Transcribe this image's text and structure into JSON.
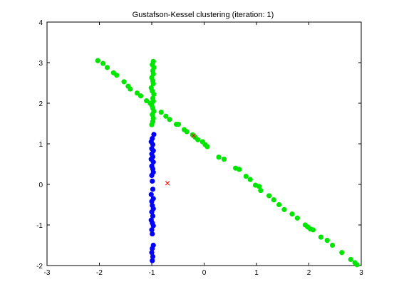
{
  "chart_data": {
    "type": "scatter",
    "title": "Gustafson-Kessel clustering (iteration: 1)",
    "xlabel": "",
    "ylabel": "",
    "xlim": [
      -3,
      3
    ],
    "ylim": [
      -2,
      4
    ],
    "xticks": [
      -3,
      -2,
      -1,
      0,
      1,
      2,
      3
    ],
    "yticks": [
      -2,
      -1,
      0,
      1,
      2,
      3,
      4
    ],
    "grid": false,
    "legend": "none",
    "series": [
      {
        "color": "#00e600",
        "marker": "filled-circle",
        "points": [
          [
            -2.03,
            3.05
          ],
          [
            -1.93,
            2.98
          ],
          [
            -1.85,
            2.88
          ],
          [
            -1.73,
            2.75
          ],
          [
            -1.67,
            2.69
          ],
          [
            -1.53,
            2.53
          ],
          [
            -1.45,
            2.42
          ],
          [
            -1.41,
            2.35
          ],
          [
            -1.28,
            2.25
          ],
          [
            -1.21,
            2.18
          ],
          [
            -1.1,
            2.06
          ],
          [
            -1.03,
            2.0
          ],
          [
            -0.97,
            3.03
          ],
          [
            -0.99,
            2.95
          ],
          [
            -0.96,
            2.88
          ],
          [
            -0.98,
            2.8
          ],
          [
            -0.97,
            2.72
          ],
          [
            -1.0,
            2.63
          ],
          [
            -0.98,
            2.55
          ],
          [
            -0.97,
            2.48
          ],
          [
            -1.01,
            2.38
          ],
          [
            -0.99,
            2.3
          ],
          [
            -0.96,
            2.22
          ],
          [
            -0.98,
            2.12
          ],
          [
            -0.97,
            2.05
          ],
          [
            -1.0,
            1.95
          ],
          [
            -0.98,
            1.88
          ],
          [
            -0.96,
            1.8
          ],
          [
            -0.99,
            1.72
          ],
          [
            -0.97,
            1.63
          ],
          [
            -0.98,
            1.55
          ],
          [
            -1.0,
            1.47
          ],
          [
            -0.82,
            1.78
          ],
          [
            -0.73,
            1.68
          ],
          [
            -0.66,
            1.6
          ],
          [
            -0.53,
            1.48
          ],
          [
            -0.49,
            1.48
          ],
          [
            -0.38,
            1.35
          ],
          [
            -0.33,
            1.3
          ],
          [
            -0.22,
            1.22
          ],
          [
            -0.17,
            1.16
          ],
          [
            -0.12,
            1.1
          ],
          [
            -0.03,
            1.05
          ],
          [
            0.02,
            0.98
          ],
          [
            0.06,
            0.93
          ],
          [
            0.28,
            0.67
          ],
          [
            0.38,
            0.62
          ],
          [
            0.6,
            0.4
          ],
          [
            0.67,
            0.37
          ],
          [
            0.8,
            0.2
          ],
          [
            0.88,
            0.12
          ],
          [
            0.98,
            -0.02
          ],
          [
            1.05,
            -0.05
          ],
          [
            1.08,
            -0.15
          ],
          [
            1.24,
            -0.28
          ],
          [
            1.33,
            -0.38
          ],
          [
            1.43,
            -0.5
          ],
          [
            1.53,
            -0.62
          ],
          [
            1.68,
            -0.73
          ],
          [
            1.78,
            -0.83
          ],
          [
            1.93,
            -1.0
          ],
          [
            1.98,
            -1.05
          ],
          [
            2.03,
            -1.1
          ],
          [
            2.08,
            -1.12
          ],
          [
            2.23,
            -1.3
          ],
          [
            2.35,
            -1.38
          ],
          [
            2.45,
            -1.5
          ],
          [
            2.63,
            -1.68
          ],
          [
            2.8,
            -1.85
          ],
          [
            2.88,
            -1.93
          ],
          [
            2.92,
            -1.98
          ]
        ]
      },
      {
        "color": "#0000ff",
        "marker": "filled-circle",
        "points": [
          [
            -0.96,
            1.23
          ],
          [
            -0.99,
            1.13
          ],
          [
            -1.01,
            1.05
          ],
          [
            -0.98,
            0.98
          ],
          [
            -1.0,
            0.88
          ],
          [
            -0.97,
            0.83
          ],
          [
            -1.0,
            0.75
          ],
          [
            -0.98,
            0.68
          ],
          [
            -1.01,
            0.62
          ],
          [
            -0.97,
            0.55
          ],
          [
            -1.0,
            0.45
          ],
          [
            -0.98,
            0.38
          ],
          [
            -0.97,
            0.3
          ],
          [
            -1.0,
            0.22
          ],
          [
            -0.99,
            0.08
          ],
          [
            -0.98,
            -0.12
          ],
          [
            -1.01,
            -0.25
          ],
          [
            -0.97,
            -0.35
          ],
          [
            -1.0,
            -0.42
          ],
          [
            -0.99,
            -0.52
          ],
          [
            -0.97,
            -0.6
          ],
          [
            -1.0,
            -0.68
          ],
          [
            -0.98,
            -0.78
          ],
          [
            -1.01,
            -0.88
          ],
          [
            -0.99,
            -0.95
          ],
          [
            -0.97,
            -1.02
          ],
          [
            -1.0,
            -1.12
          ],
          [
            -0.99,
            -1.22
          ],
          [
            -0.97,
            -1.5
          ],
          [
            -0.99,
            -1.58
          ],
          [
            -1.0,
            -1.68
          ],
          [
            -0.98,
            -1.78
          ],
          [
            -0.99,
            -1.88
          ]
        ]
      }
    ],
    "centers": {
      "color": "#ff0000",
      "marker": "x",
      "points": [
        [
          -0.7,
          0.03
        ],
        [
          -0.2,
          1.2
        ]
      ]
    }
  }
}
